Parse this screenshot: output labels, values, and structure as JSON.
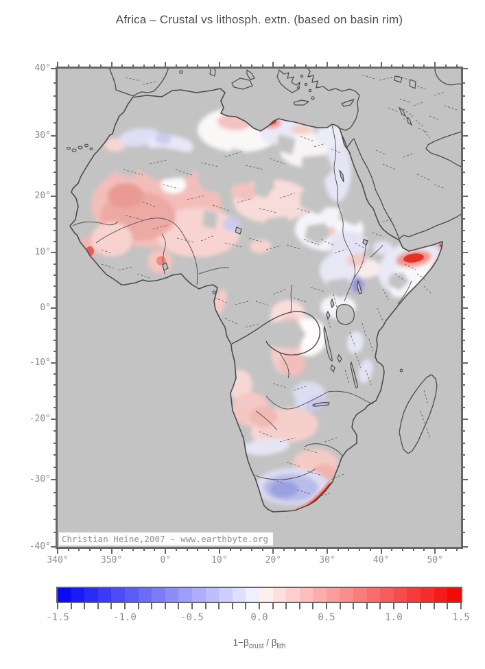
{
  "title": "Africa – Crustal vs lithosph. extn. (based on basin rim)",
  "map": {
    "attribution": "Christian Heine,2007 - www.earthbyte.org",
    "x_axis": {
      "minor_step_deg": 2,
      "major_ticks": [
        {
          "lon": -20,
          "label": "340°"
        },
        {
          "lon": -10,
          "label": "350°"
        },
        {
          "lon": 0,
          "label": "0°"
        },
        {
          "lon": 10,
          "label": "10°"
        },
        {
          "lon": 20,
          "label": "20°"
        },
        {
          "lon": 30,
          "label": "30°"
        },
        {
          "lon": 40,
          "label": "40°"
        },
        {
          "lon": 50,
          "label": "50°"
        }
      ]
    },
    "y_axis": {
      "minor_step_deg": 2,
      "major_ticks": [
        {
          "lat": 40,
          "label": "40°"
        },
        {
          "lat": 30,
          "label": "30°"
        },
        {
          "lat": 20,
          "label": "20°"
        },
        {
          "lat": 10,
          "label": "10°"
        },
        {
          "lat": 0,
          "label": "0°"
        },
        {
          "lat": -10,
          "label": "-10°"
        },
        {
          "lat": -20,
          "label": "-20°"
        },
        {
          "lat": -30,
          "label": "-30°"
        },
        {
          "lat": -40,
          "label": "-40°"
        }
      ]
    }
  },
  "colorbar": {
    "min": -1.5,
    "max": 1.5,
    "minor_step": 0.1,
    "major_ticks": [
      {
        "value": -1.5,
        "label": "-1.5"
      },
      {
        "value": -1.0,
        "label": "-1.0"
      },
      {
        "value": -0.5,
        "label": "-0.5"
      },
      {
        "value": 0.0,
        "label": "0.0"
      },
      {
        "value": 0.5,
        "label": "0.5"
      },
      {
        "value": 1.0,
        "label": "1.0"
      },
      {
        "value": 1.5,
        "label": "1.5"
      }
    ],
    "segment_colors": [
      "#0a0af5",
      "#1a1af6",
      "#2b2bf6",
      "#3b3bf7",
      "#4b4bf8",
      "#5c5cf8",
      "#6c6cf9",
      "#7c7cfa",
      "#8d8dfa",
      "#9d9dfb",
      "#adadfc",
      "#bebefc",
      "#cecefd",
      "#dedefe",
      "#efeffe",
      "#feefef",
      "#fedede",
      "#fdcece",
      "#fcbebe",
      "#fcadad",
      "#fb9d9d",
      "#fa8d8d",
      "#fa7c7c",
      "#f96c6c",
      "#f85c5c",
      "#f84b4b",
      "#f73b3b",
      "#f62b2b",
      "#f61a1a",
      "#f50a0a"
    ],
    "label": {
      "prefix": "1−β",
      "sub1": "crust",
      "mid": " / β",
      "sub2": "lith"
    }
  },
  "colors": {
    "page_bg": "#ffffff",
    "map_bg": "#c3c3c3",
    "frame": "#666666",
    "coastline": "#4a4a4a",
    "axis_label": "#8c8c8c",
    "title": "#4a4a4a",
    "attribution_text": "#8f8f8f",
    "attribution_bg": "#fcfcfc",
    "colorbar_label": "#5f5f5f",
    "river": "#4a4a4a",
    "fault": "#5a5a5a"
  },
  "field_palette": {
    "strong_red": "#e32015",
    "red": "#e63226",
    "salmon": "#ef8d82",
    "pink": "#f4c8c4",
    "pale_pink": "#f8dcd9",
    "white": "#fdfdfd",
    "pale_lavender": "#ececf8",
    "lavender": "#dcdcf3",
    "blue": "#b9bce9",
    "strong_blue": "#9aa0e0",
    "deep_blue_spot": "#9393dd"
  }
}
